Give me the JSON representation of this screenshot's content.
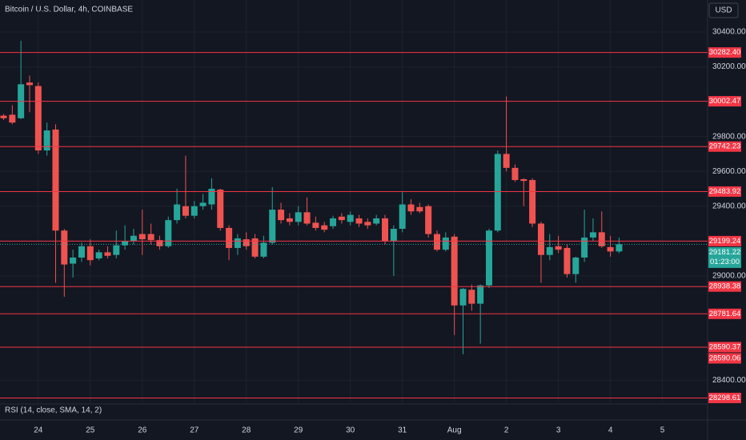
{
  "chart_data": {
    "type": "candlestick",
    "title": "Bitcoin / U.S. Dollar, 4h, COINBASE",
    "currency": "USD",
    "indicator": "RSI (14, close, SMA, 14, 2)",
    "categories": [
      null,
      null,
      null,
      null,
      "24",
      null,
      null,
      null,
      null,
      null,
      "25",
      null,
      null,
      null,
      null,
      null,
      "26",
      null,
      null,
      null,
      null,
      null,
      "27",
      null,
      null,
      null,
      null,
      null,
      "28",
      null,
      null,
      null,
      null,
      null,
      "29",
      null,
      null,
      null,
      null,
      null,
      "30",
      null,
      null,
      null,
      null,
      null,
      "31",
      null,
      null,
      null,
      null,
      null,
      "Aug",
      null,
      null,
      null,
      null,
      null,
      "2",
      null,
      null,
      null,
      null,
      null,
      "3",
      null,
      null,
      null,
      null,
      null,
      "4",
      null,
      null,
      null,
      null,
      null,
      "5"
    ],
    "open": [
      29920,
      29925,
      29905,
      30110,
      30090,
      29720,
      29840,
      29260,
      29070,
      29105,
      29170,
      29100,
      29135,
      29120,
      29175,
      29200,
      29240,
      29240,
      29205,
      29170,
      29320,
      29400,
      29345,
      29400,
      29410,
      29495,
      29275,
      29160,
      29210,
      29215,
      29110,
      29190,
      29380,
      29330,
      29310,
      29365,
      29305,
      29290,
      29285,
      29340,
      29310,
      29330,
      29310,
      29300,
      29330,
      29200,
      29270,
      29410,
      29395,
      29400,
      29240,
      29150,
      29225,
      28830,
      28920,
      28840,
      28945,
      29260,
      29700,
      29620,
      29555,
      29550,
      29300,
      29120,
      29170,
      29160,
      29010,
      29105,
      29220,
      29250,
      29165,
      29140,
      null,
      null,
      null,
      null,
      null
    ],
    "high": [
      29930,
      29980,
      30350,
      30150,
      30110,
      29880,
      29870,
      29270,
      29150,
      29190,
      29210,
      29150,
      29170,
      29260,
      29290,
      29270,
      29380,
      29300,
      29230,
      29340,
      29500,
      29690,
      29430,
      29470,
      29560,
      29500,
      29290,
      29240,
      29250,
      29240,
      29230,
      29510,
      29420,
      29360,
      29400,
      29450,
      29340,
      29310,
      29345,
      29360,
      29370,
      29350,
      29330,
      29350,
      29350,
      29290,
      29480,
      29440,
      29420,
      29410,
      29260,
      29250,
      29240,
      28930,
      28950,
      28950,
      29270,
      29720,
      30030,
      29640,
      29560,
      29560,
      29310,
      29240,
      29230,
      29180,
      29110,
      29380,
      29330,
      29370,
      29230,
      29220,
      null,
      null,
      null,
      null,
      null
    ],
    "low": [
      29895,
      29870,
      29900,
      29940,
      29700,
      29690,
      28960,
      28880,
      28990,
      29080,
      29060,
      29090,
      29100,
      29100,
      29150,
      29180,
      29120,
      29180,
      29150,
      29160,
      29300,
      29330,
      29330,
      29380,
      29380,
      29260,
      29090,
      29120,
      29150,
      29100,
      29100,
      29180,
      29300,
      29290,
      29290,
      29290,
      29260,
      29250,
      29270,
      29300,
      29290,
      29280,
      29270,
      29290,
      29180,
      29000,
      29250,
      29350,
      29360,
      29220,
      29140,
      29140,
      28660,
      28550,
      28800,
      28610,
      28930,
      29250,
      29600,
      29540,
      29400,
      29280,
      28960,
      29090,
      29130,
      28990,
      28960,
      29080,
      29200,
      29160,
      29110,
      29130,
      null,
      null,
      null,
      null,
      null
    ],
    "close": [
      29905,
      29880,
      30100,
      30095,
      29720,
      29835,
      29260,
      29065,
      29105,
      29170,
      29090,
      29135,
      29115,
      29175,
      29200,
      29230,
      29210,
      29205,
      29170,
      29320,
      29410,
      29345,
      29400,
      29420,
      29500,
      29275,
      29160,
      29215,
      29170,
      29110,
      29190,
      29380,
      29320,
      29310,
      29365,
      29300,
      29275,
      29265,
      29330,
      29320,
      29350,
      29300,
      29290,
      29330,
      29200,
      29270,
      29410,
      29370,
      29370,
      29240,
      29150,
      29220,
      28830,
      28925,
      28840,
      28945,
      29260,
      29700,
      29620,
      29550,
      29545,
      29300,
      29120,
      29165,
      29150,
      29010,
      29105,
      29220,
      29250,
      29170,
      29140,
      29181.22,
      null,
      null,
      null,
      null,
      null
    ],
    "up_color": "#26a69a",
    "down_color": "#ef5350",
    "ylim": [
      28195,
      30584
    ],
    "yticks": [
      {
        "value": 30400,
        "label": "30400.00"
      },
      {
        "value": 30200,
        "label": "30200.00"
      },
      {
        "value": 29800,
        "label": "29800.00"
      },
      {
        "value": 29600,
        "label": "29600.00"
      },
      {
        "value": 29400,
        "label": "29400.00"
      },
      {
        "value": 29000,
        "label": "29000.00"
      },
      {
        "value": 28400,
        "label": "28400.00"
      }
    ],
    "grid": true,
    "hlines": {
      "color": "#f23645",
      "values": [
        30282.4,
        30002.47,
        29742.23,
        29483.92,
        29199.24,
        28938.38,
        28781.64,
        28590.37,
        28590.06,
        28298.61
      ],
      "value_labels": [
        "30282.40",
        "30002.47",
        "29742.23",
        "29483.92",
        "29199.24",
        "28938.38",
        "28781.64",
        "28590.37",
        "28590.06",
        "28298.61"
      ]
    },
    "last_price": {
      "value": 29181.22,
      "label": "29181.22"
    },
    "countdown": "01:23:00"
  }
}
